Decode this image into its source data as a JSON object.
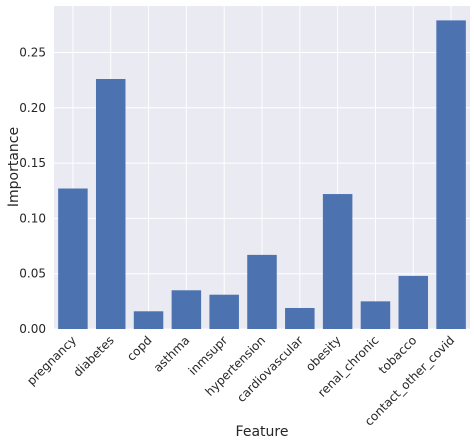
{
  "chart_data": {
    "type": "bar",
    "title": "",
    "xlabel": "Feature",
    "ylabel": "Importance",
    "categories": [
      "pregnancy",
      "diabetes",
      "copd",
      "asthma",
      "inmsupr",
      "hypertension",
      "cardiovascular",
      "obesity",
      "renal_chronic",
      "tobacco",
      "contact_other_covid"
    ],
    "values": [
      0.127,
      0.226,
      0.016,
      0.035,
      0.031,
      0.067,
      0.019,
      0.122,
      0.025,
      0.048,
      0.279
    ],
    "ylim": [
      0,
      0.292
    ],
    "yticks": [
      0.0,
      0.05,
      0.1,
      0.15,
      0.2,
      0.25
    ],
    "ytick_labels": [
      "0.00",
      "0.05",
      "0.10",
      "0.15",
      "0.20",
      "0.25"
    ],
    "grid": true,
    "bar_color": "#4c72b0",
    "background_color": "#eaeaf2",
    "grid_color": "#ffffff"
  }
}
